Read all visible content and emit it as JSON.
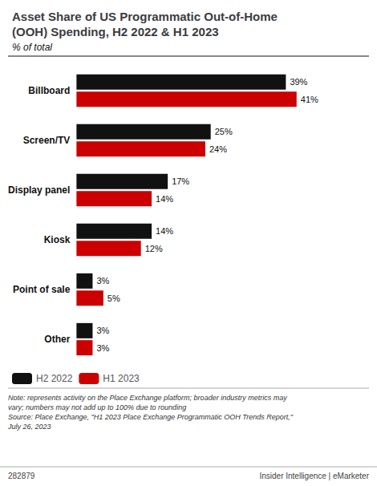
{
  "chart_data": {
    "type": "bar",
    "orientation": "horizontal",
    "title": "Asset Share of US Programmatic Out-of-Home\n(OOH) Spending, H2 2022 & H1 2023",
    "subtitle": "% of total",
    "categories": [
      "Billboard",
      "Screen/TV",
      "Display panel",
      "Kiosk",
      "Point of sale",
      "Other"
    ],
    "series": [
      {
        "name": "H2 2022",
        "color": "#111111",
        "values": [
          39,
          25,
          17,
          14,
          3,
          3
        ],
        "value_labels": [
          "39%",
          "25%",
          "17%",
          "14%",
          "3%",
          "3%"
        ]
      },
      {
        "name": "H1 2023",
        "color": "#cc0000",
        "values": [
          41,
          24,
          14,
          12,
          5,
          3
        ],
        "value_labels": [
          "41%",
          "24%",
          "14%",
          "12%",
          "5%",
          "3%"
        ]
      }
    ],
    "xlim": [
      0,
      50
    ],
    "data_labels": true,
    "tick_labels": "y",
    "grid": false,
    "legend": "bottom",
    "annotations": [
      "Note: represents activity on the Place Exchange platform; broader industry metrics may\nvary; numbers may not add up to 100% due to rounding\nSource: Place Exchange, \"H1 2023 Place Exchange Programmatic OOH Trends Report,\"\nJuly 26, 2023",
      "282879",
      "Insider Intelligence | eMarketer"
    ]
  }
}
